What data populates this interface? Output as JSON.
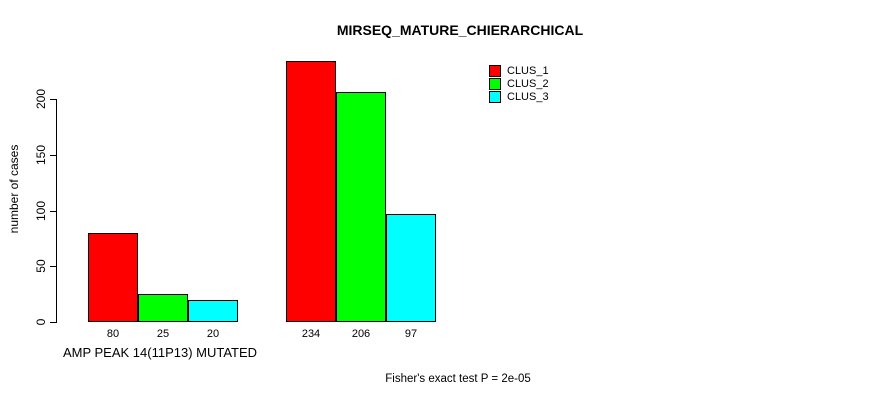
{
  "chart_data": {
    "type": "bar",
    "title": "MIRSEQ_MATURE_CHIERARCHICAL",
    "categories": [
      "AMP PEAK 14(11P13) MUTATED",
      ""
    ],
    "series": [
      {
        "name": "CLUS_1",
        "color": "#ff0000",
        "values": [
          80,
          234
        ]
      },
      {
        "name": "CLUS_2",
        "color": "#00ff00",
        "values": [
          25,
          206
        ]
      },
      {
        "name": "CLUS_3",
        "color": "#00ffff",
        "values": [
          20,
          97
        ]
      }
    ],
    "xlabel": "",
    "ylabel": "number of cases",
    "ylim": [
      0,
      200
    ],
    "yticks": [
      0,
      50,
      100,
      150,
      200
    ],
    "bar_value_labels": true,
    "grid": false,
    "legend_position": "top-right",
    "annotation": "Fisher's exact test P = 2e-05"
  }
}
